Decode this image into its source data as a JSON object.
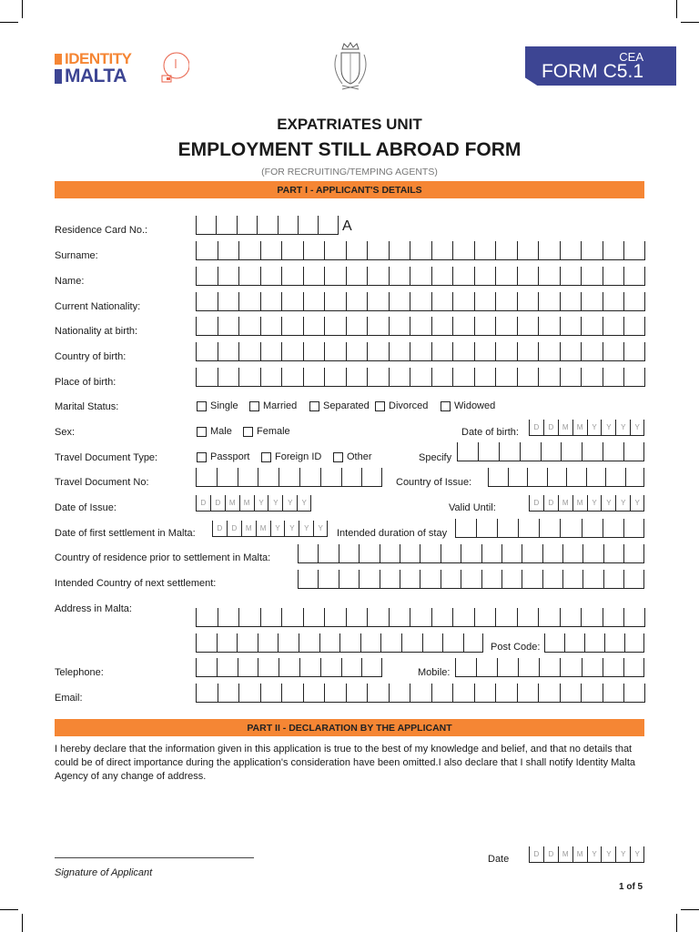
{
  "header": {
    "logo_line1": "IDENTITY",
    "logo_line2": "MALTA",
    "form_code_top": "CEA",
    "form_code": "FORM C5.1",
    "brand_orange": "#f58634",
    "brand_blue": "#3d4593"
  },
  "titles": {
    "unit": "EXPATRIATES UNIT",
    "form_title": "EMPLOYMENT STILL ABROAD FORM",
    "subtitle": "(FOR RECRUITING/TEMPING AGENTS)"
  },
  "part1": {
    "heading": "PART I - APPLICANT'S DETAILS",
    "residence_card": "Residence Card No.:",
    "residence_suffix": "A",
    "surname": "Surname:",
    "name": "Name:",
    "current_nationality": "Current Nationality:",
    "nationality_birth": "Nationality at birth:",
    "country_birth": "Country of birth:",
    "place_birth": "Place of birth:",
    "marital_status": "Marital Status:",
    "marital_options": [
      "Single",
      "Married",
      "Separated",
      "Divorced",
      "Widowed"
    ],
    "sex": "Sex:",
    "sex_options": [
      "Male",
      "Female"
    ],
    "date_of_birth": "Date of birth:",
    "travel_doc_type": "Travel Document Type:",
    "travel_doc_options": [
      "Passport",
      "Foreign ID",
      "Other"
    ],
    "specify": "Specify",
    "travel_doc_no": "Travel Document No:",
    "country_issue": "Country of Issue:",
    "date_issue": "Date of Issue:",
    "valid_until": "Valid Until:",
    "first_settlement": "Date of first settlement in Malta:",
    "intended_duration": "Intended duration of stay",
    "country_prior": "Country of residence prior to settlement in Malta:",
    "next_country": "Intended Country of next settlement:",
    "address": "Address in Malta:",
    "post_code": "Post Code:",
    "telephone": "Telephone:",
    "mobile": "Mobile:",
    "email": "Email:",
    "date_placeholder": [
      "D",
      "D",
      "M",
      "M",
      "Y",
      "Y",
      "Y",
      "Y"
    ]
  },
  "part2": {
    "heading": "PART II - DECLARATION BY THE APPLICANT",
    "declaration": "I hereby declare that the information given in this application is true to the best of my knowledge and belief, and that no details that could be of direct importance during the application's consideration have been omitted.I also declare that I shall notify Identity Malta Agency of any change of address.",
    "signature_label": "Signature of Applicant",
    "date_label": "Date"
  },
  "footer": {
    "page": "1 of 5"
  }
}
